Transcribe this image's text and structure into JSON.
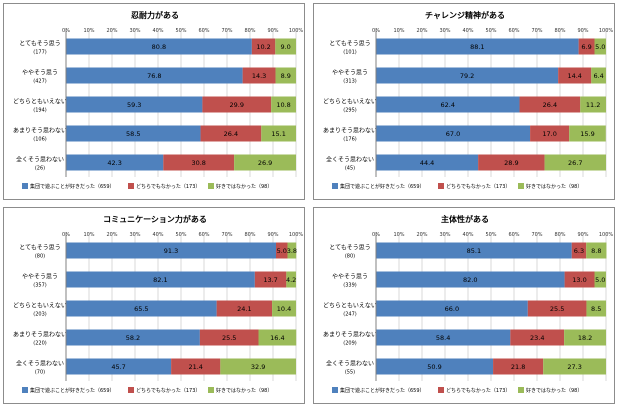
{
  "chart_data": [
    {
      "type": "bar",
      "orientation": "horizontal",
      "stacked": true,
      "title": "忍耐力がある",
      "xlim": [
        0,
        100
      ],
      "ticks": [
        "0%",
        "10%",
        "20%",
        "30%",
        "40%",
        "50%",
        "60%",
        "70%",
        "80%",
        "90%",
        "100%"
      ],
      "categories": [
        "とてもそう思う",
        "ややそう思う",
        "どちらともいえない",
        "あまりそう思わない",
        "全くそう思わない"
      ],
      "counts": [
        "(177)",
        "(427)",
        "(194)",
        "(106)",
        "(26)"
      ],
      "series": [
        {
          "name": "集団で遊ぶことが好きだった（659）",
          "color": "#4f81bd",
          "values": [
            80.8,
            76.8,
            59.3,
            58.5,
            42.3
          ]
        },
        {
          "name": "どちらでもなかった（173）",
          "color": "#c0504d",
          "values": [
            10.2,
            14.3,
            29.9,
            26.4,
            30.8
          ]
        },
        {
          "name": "好きではなかった（98）",
          "color": "#9bbb59",
          "values": [
            9.0,
            8.9,
            10.8,
            15.1,
            26.9
          ]
        }
      ],
      "legend": "bottom",
      "grid": true
    },
    {
      "type": "bar",
      "orientation": "horizontal",
      "stacked": true,
      "title": "チャレンジ精神がある",
      "xlim": [
        0,
        100
      ],
      "ticks": [
        "0%",
        "10%",
        "20%",
        "30%",
        "40%",
        "50%",
        "60%",
        "70%",
        "80%",
        "90%",
        "100%"
      ],
      "categories": [
        "とてもそう思う",
        "ややそう思う",
        "どちらともいえない",
        "あまりそう思わない",
        "全くそう思わない"
      ],
      "counts": [
        "(101)",
        "(313)",
        "(295)",
        "(176)",
        "(45)"
      ],
      "series": [
        {
          "name": "集団で遊ぶことが好きだった（659）",
          "color": "#4f81bd",
          "values": [
            88.1,
            79.2,
            62.4,
            67.0,
            44.4
          ]
        },
        {
          "name": "どちらでもなかった（173）",
          "color": "#c0504d",
          "values": [
            6.9,
            14.4,
            26.4,
            17.0,
            28.9
          ]
        },
        {
          "name": "好きではなかった（98）",
          "color": "#9bbb59",
          "values": [
            5.0,
            6.4,
            11.2,
            15.9,
            26.7
          ]
        }
      ],
      "legend": "bottom",
      "grid": true
    },
    {
      "type": "bar",
      "orientation": "horizontal",
      "stacked": true,
      "title": "コミュニケーション力がある",
      "xlim": [
        0,
        100
      ],
      "ticks": [
        "0%",
        "10%",
        "20%",
        "30%",
        "40%",
        "50%",
        "60%",
        "70%",
        "80%",
        "90%",
        "100%"
      ],
      "categories": [
        "とてもそう思う",
        "ややそう思う",
        "どちらともいえない",
        "あまりそう思わない",
        "全くそう思わない"
      ],
      "counts": [
        "(80)",
        "(357)",
        "(203)",
        "(220)",
        "(70)"
      ],
      "series": [
        {
          "name": "集団で遊ぶことが好きだった（659）",
          "color": "#4f81bd",
          "values": [
            91.3,
            82.1,
            65.5,
            58.2,
            45.7
          ]
        },
        {
          "name": "どちらでもなかった（173）",
          "color": "#c0504d",
          "values": [
            5.0,
            13.7,
            24.1,
            25.5,
            21.4
          ]
        },
        {
          "name": "好きではなかった（98）",
          "color": "#9bbb59",
          "values": [
            3.8,
            4.2,
            10.4,
            16.4,
            32.9
          ]
        }
      ],
      "legend": "bottom",
      "grid": true
    },
    {
      "type": "bar",
      "orientation": "horizontal",
      "stacked": true,
      "title": "主体性がある",
      "xlim": [
        0,
        100
      ],
      "ticks": [
        "0%",
        "10%",
        "20%",
        "30%",
        "40%",
        "50%",
        "60%",
        "70%",
        "80%",
        "90%",
        "100%"
      ],
      "categories": [
        "とてもそう思う",
        "ややそう思う",
        "どちらともいえない",
        "あまりそう思わない",
        "全くそう思わない"
      ],
      "counts": [
        "(80)",
        "(339)",
        "(247)",
        "(209)",
        "(55)"
      ],
      "series": [
        {
          "name": "集団で遊ぶことが好きだった（659）",
          "color": "#4f81bd",
          "values": [
            85.1,
            82.0,
            66.0,
            58.4,
            50.9
          ]
        },
        {
          "name": "どちらでもなかった（173）",
          "color": "#c0504d",
          "values": [
            6.3,
            13.0,
            25.5,
            23.4,
            21.8
          ]
        },
        {
          "name": "好きではなかった（98）",
          "color": "#9bbb59",
          "values": [
            8.8,
            5.0,
            8.5,
            18.2,
            27.3
          ]
        }
      ],
      "legend": "bottom",
      "grid": true
    }
  ]
}
